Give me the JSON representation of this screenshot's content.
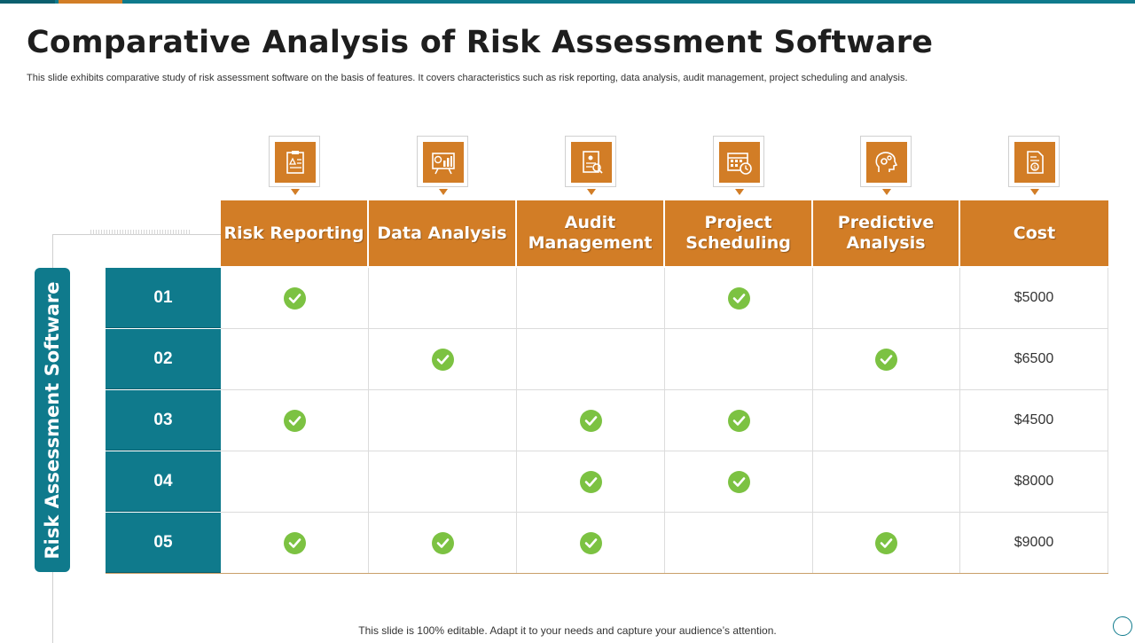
{
  "colors": {
    "accent": "#d27d26",
    "teal": "#0f7a8c",
    "check": "#7cc242"
  },
  "title": "Comparative Analysis of Risk Assessment Software",
  "subtitle": "This slide exhibits comparative study of risk assessment software on the basis of features. It covers characteristics such as risk reporting, data analysis, audit management, project scheduling and analysis.",
  "side_label": "Risk Assessment Software",
  "columns": [
    {
      "label": "Risk Reporting",
      "icon": "report-icon"
    },
    {
      "label": "Data Analysis",
      "icon": "chart-board-icon"
    },
    {
      "label": "Audit Management",
      "icon": "audit-document-icon"
    },
    {
      "label": "Project Scheduling",
      "icon": "calendar-clock-icon"
    },
    {
      "label": "Predictive Analysis",
      "icon": "head-gears-icon"
    },
    {
      "label": "Cost",
      "icon": "cost-document-icon"
    }
  ],
  "rows": [
    {
      "id": "01",
      "checks": [
        true,
        false,
        false,
        true,
        false
      ],
      "cost": "$5000"
    },
    {
      "id": "02",
      "checks": [
        false,
        true,
        false,
        false,
        true
      ],
      "cost": "$6500"
    },
    {
      "id": "03",
      "checks": [
        true,
        false,
        true,
        true,
        false
      ],
      "cost": "$4500"
    },
    {
      "id": "04",
      "checks": [
        false,
        false,
        true,
        true,
        false
      ],
      "cost": "$8000"
    },
    {
      "id": "05",
      "checks": [
        true,
        true,
        true,
        false,
        true
      ],
      "cost": "$9000"
    }
  ],
  "footer": "This slide is 100% editable. Adapt it to your needs and capture your audience’s attention."
}
